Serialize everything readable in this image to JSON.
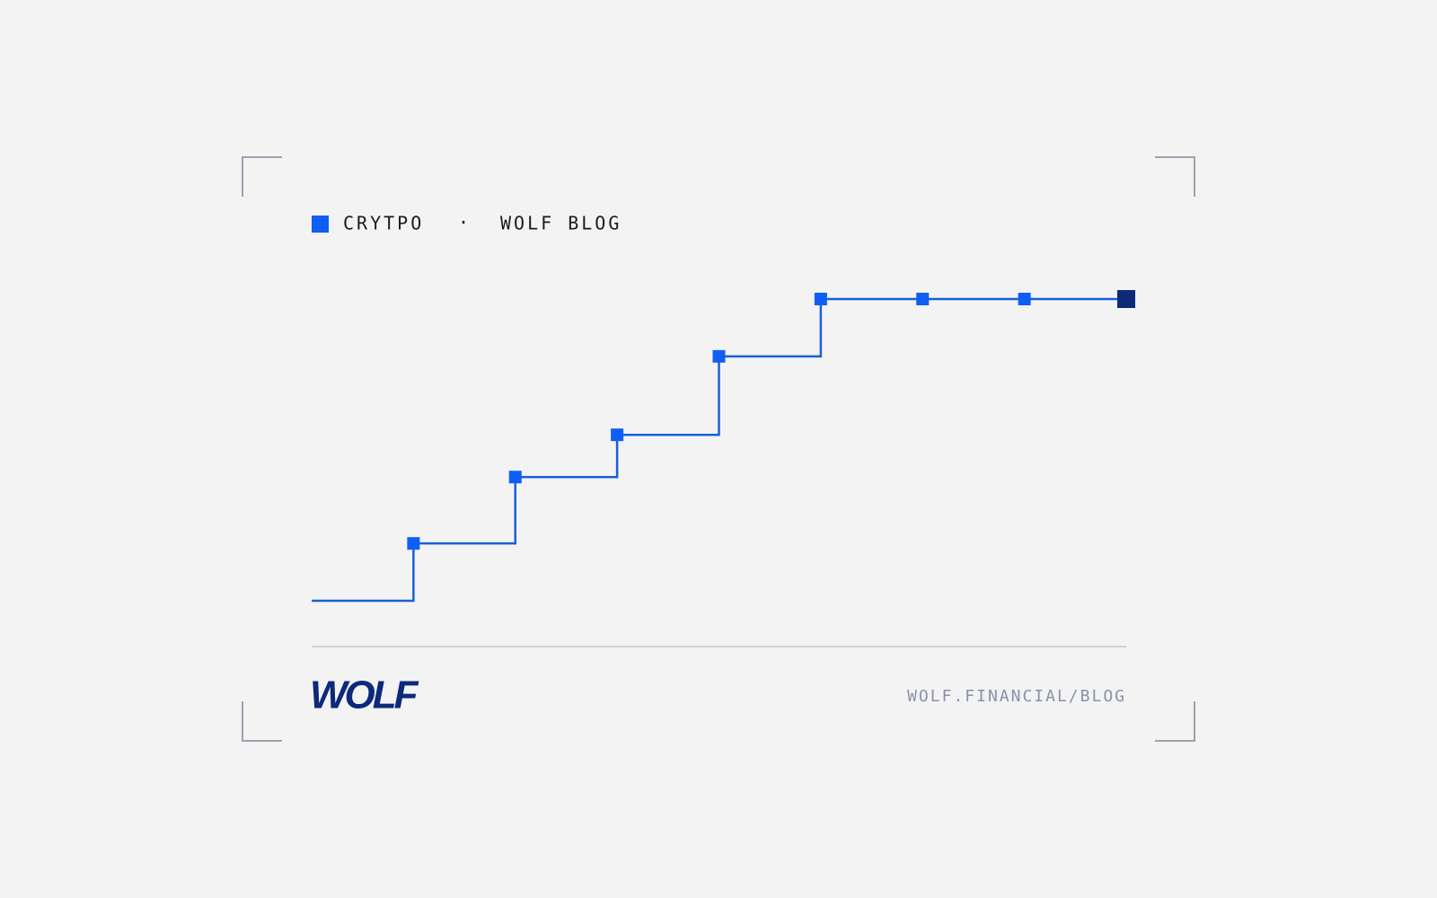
{
  "chart_data": {
    "type": "line",
    "step": "post",
    "tag": "CRYTPO",
    "separator": "·",
    "source": "WOLF BLOG",
    "logo": "WOLF",
    "url": "WOLF.FINANCIAL/BLOG",
    "x": [
      0,
      1,
      2,
      3,
      4,
      5,
      6,
      7,
      8
    ],
    "values": [
      0,
      19,
      41,
      55,
      81,
      100,
      100,
      100,
      100
    ],
    "xlim": [
      0,
      8
    ],
    "ylim": [
      0,
      100
    ],
    "color": "#1a5fd6",
    "marker_color": "#0f5ef7",
    "last_marker_color": "#0d2a7a"
  }
}
